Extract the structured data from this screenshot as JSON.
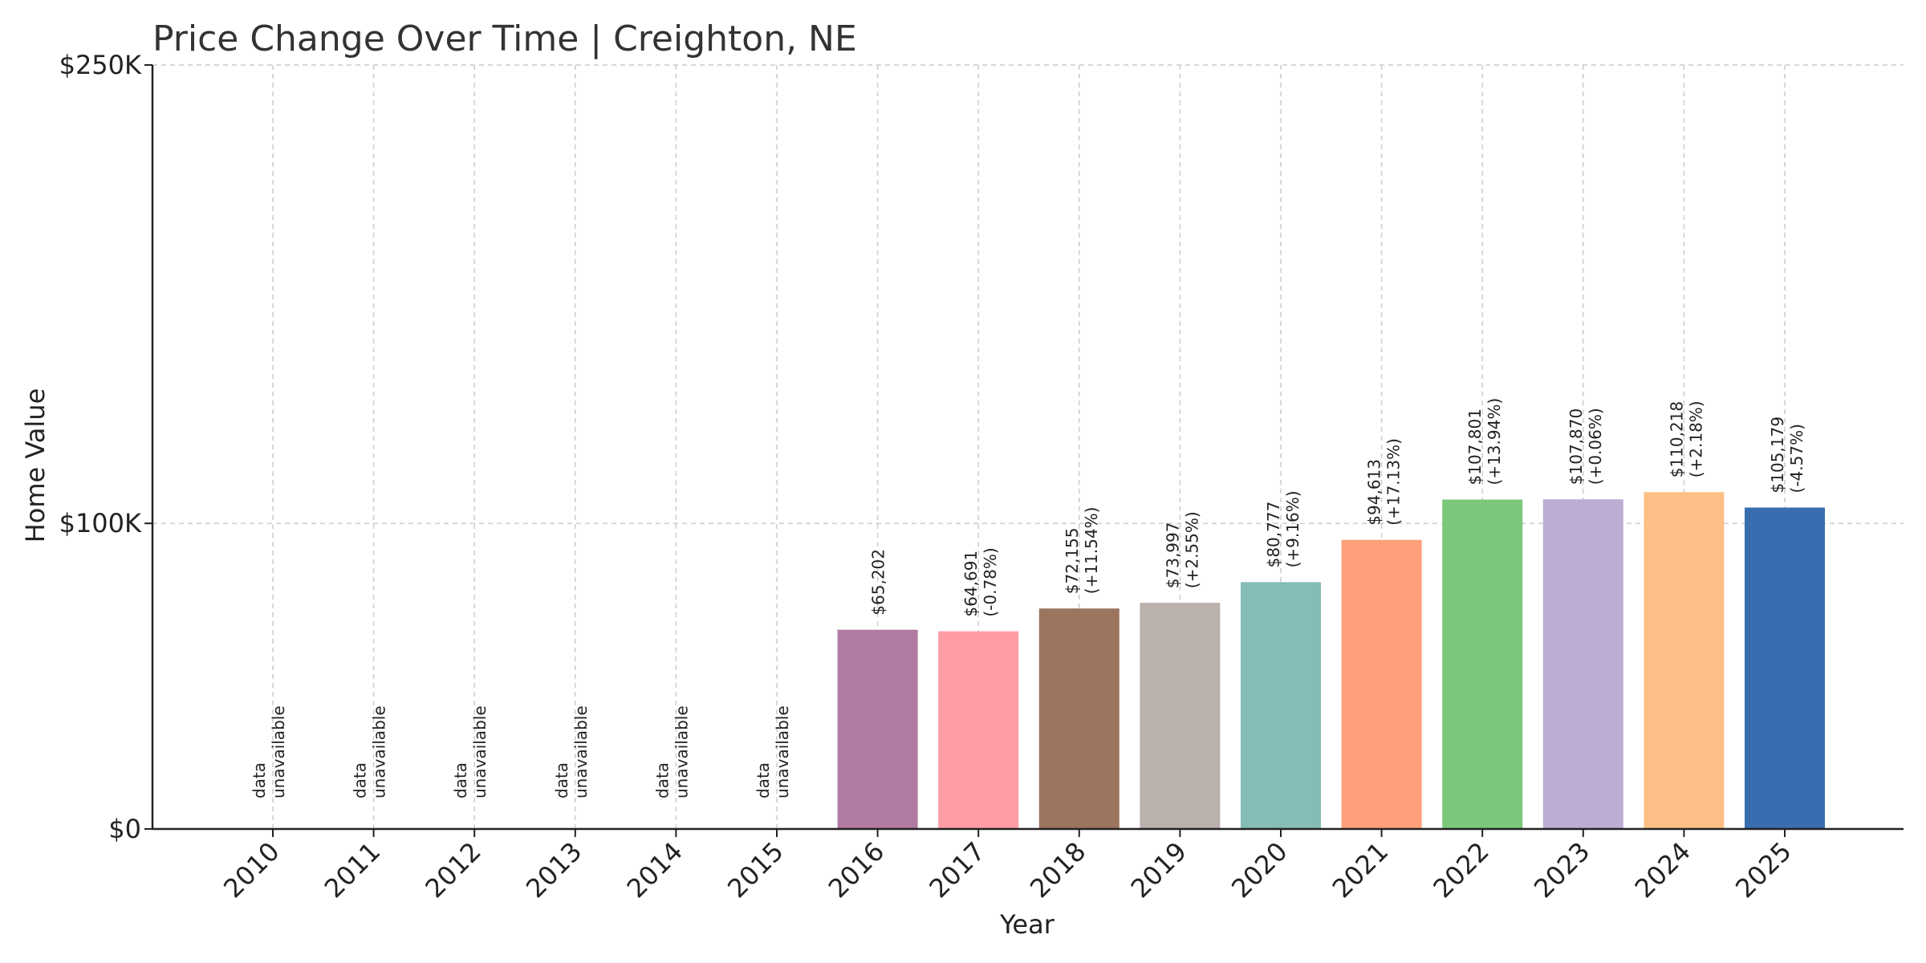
{
  "chart_data": {
    "type": "bar",
    "title": "Price Change Over Time | Creighton, NE",
    "xlabel": "Year",
    "ylabel": "Home Value",
    "ylim": [
      0,
      250000
    ],
    "yticks": [
      {
        "value": 0,
        "label": "$0"
      },
      {
        "value": 100000,
        "label": "$100K"
      },
      {
        "value": 250000,
        "label": "$250K"
      }
    ],
    "grid": true,
    "categories": [
      "2010",
      "2011",
      "2012",
      "2013",
      "2014",
      "2015",
      "2016",
      "2017",
      "2018",
      "2019",
      "2020",
      "2021",
      "2022",
      "2023",
      "2024",
      "2025"
    ],
    "values": [
      null,
      null,
      null,
      null,
      null,
      null,
      65202,
      64691,
      72155,
      73997,
      80777,
      94613,
      107801,
      107870,
      110218,
      105179
    ],
    "value_labels": [
      "",
      "",
      "",
      "",
      "",
      "",
      "$65,202",
      "$64,691",
      "$72,155",
      "$73,997",
      "$80,777",
      "$94,613",
      "$107,801",
      "$107,870",
      "$110,218",
      "$105,179"
    ],
    "change_labels": [
      "",
      "",
      "",
      "",
      "",
      "",
      "",
      "(-0.78%)",
      "(+11.54%)",
      "(+2.55%)",
      "(+9.16%)",
      "(+17.13%)",
      "(+13.94%)",
      "(+0.06%)",
      "(+2.18%)",
      "(-4.57%)"
    ],
    "unavailable_label": [
      "data",
      "unavailable"
    ],
    "colors": [
      "#b07aa1",
      "#b07aa1",
      "#b07aa1",
      "#b07aa1",
      "#b07aa1",
      "#b07aa1",
      "#b07aa1",
      "#ff9da7",
      "#9c755f",
      "#bab0ac",
      "#86bcb6",
      "#ffa07a",
      "#7bc87a",
      "#bdadd4",
      "#fdbf85",
      "#3a6db0"
    ]
  }
}
